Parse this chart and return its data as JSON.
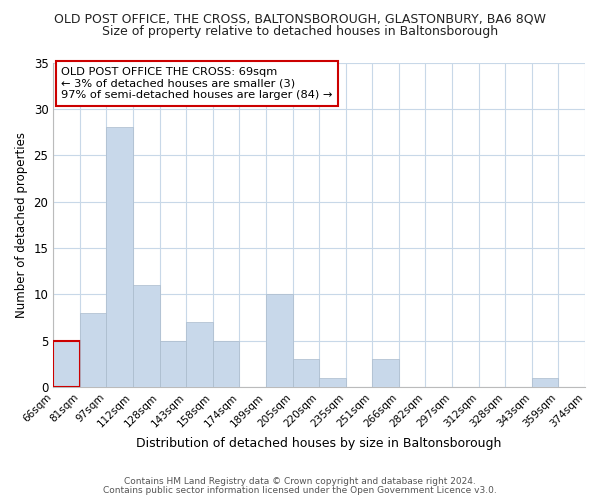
{
  "title": "OLD POST OFFICE, THE CROSS, BALTONSBOROUGH, GLASTONBURY, BA6 8QW",
  "subtitle": "Size of property relative to detached houses in Baltonsborough",
  "xlabel": "Distribution of detached houses by size in Baltonsborough",
  "ylabel": "Number of detached properties",
  "bar_color": "#c8d8ea",
  "bar_edge_color": "#aabbcc",
  "highlight_bar_edge_color": "#cc0000",
  "footer1": "Contains HM Land Registry data © Crown copyright and database right 2024.",
  "footer2": "Contains public sector information licensed under the Open Government Licence v3.0.",
  "annotation_line1": "OLD POST OFFICE THE CROSS: 69sqm",
  "annotation_line2": "← 3% of detached houses are smaller (3)",
  "annotation_line3": "97% of semi-detached houses are larger (84) →",
  "annotation_box_edge_color": "#cc0000",
  "bins": [
    "66sqm",
    "81sqm",
    "97sqm",
    "112sqm",
    "128sqm",
    "143sqm",
    "158sqm",
    "174sqm",
    "189sqm",
    "205sqm",
    "220sqm",
    "235sqm",
    "251sqm",
    "266sqm",
    "282sqm",
    "297sqm",
    "312sqm",
    "328sqm",
    "343sqm",
    "359sqm",
    "374sqm"
  ],
  "values": [
    5,
    8,
    28,
    11,
    5,
    7,
    5,
    0,
    10,
    3,
    1,
    0,
    3,
    0,
    0,
    0,
    0,
    0,
    1,
    0
  ],
  "highlight_bin_index": 0,
  "ylim": [
    0,
    35
  ],
  "yticks": [
    0,
    5,
    10,
    15,
    20,
    25,
    30,
    35
  ],
  "figsize": [
    6.0,
    5.0
  ],
  "dpi": 100,
  "bg_color": "#ffffff",
  "grid_color": "#c8d8e8"
}
